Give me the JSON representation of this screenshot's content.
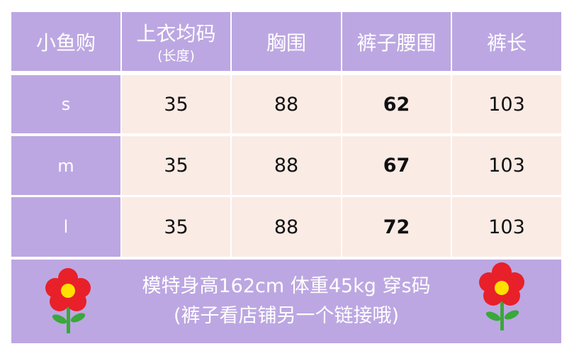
{
  "header": {
    "brand": "小鱼购",
    "top_length": "上衣均码",
    "top_length_note": "(长度)",
    "chest": "胸围",
    "waist": "裤子腰围",
    "pants_length": "裤长"
  },
  "rows": [
    {
      "size": "s",
      "top": "35",
      "chest": "88",
      "waist": "62",
      "pants": "103"
    },
    {
      "size": "m",
      "top": "35",
      "chest": "88",
      "waist": "67",
      "pants": "103"
    },
    {
      "size": "l",
      "top": "35",
      "chest": "88",
      "waist": "72",
      "pants": "103"
    }
  ],
  "footer": {
    "line1": "模特身高162cm 体重45kg 穿s码",
    "line2": "(裤子看店铺另一个链接哦)"
  },
  "colors": {
    "purple": "#bca7e2",
    "pink": "#fbebe5",
    "flower_petal": "#e8202a",
    "flower_center": "#ffe000",
    "stem": "#3aa83a"
  }
}
